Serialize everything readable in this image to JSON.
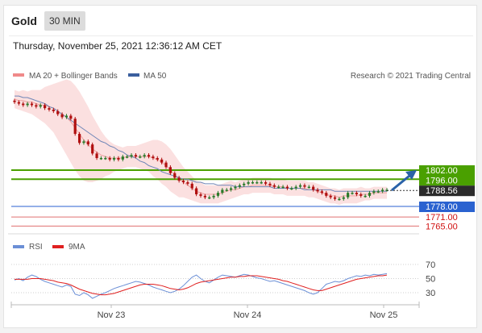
{
  "header": {
    "title": "Gold",
    "timeframe": "30 MIN"
  },
  "date_text": "Thursday, November 25, 2021 12:36:12 AM CET",
  "credit": "Research © 2021 Trading Central",
  "legend_main": [
    {
      "name": "MA 20 + Bollinger Bands",
      "color": "#f08a8a"
    },
    {
      "name": "MA 50",
      "color": "#3a5f9e"
    }
  ],
  "legend_rsi": [
    {
      "name": "RSI",
      "color": "#6b8fd6"
    },
    {
      "name": "9MA",
      "color": "#e02020"
    }
  ],
  "colors": {
    "up": "#2a7a2a",
    "down": "#b01010",
    "resistance": "#4aa000",
    "support_blue": "#2a62d0",
    "support_red": "#e07070",
    "band_fill": "#fbe0e0",
    "ma50": "#6f86b7",
    "ma20": "#f0a0a0",
    "price_box": "#2b2b2b",
    "arrow": "#2a62a8"
  },
  "chart_data": [
    {
      "type": "candlestick",
      "x_ticks": [
        "Nov 23",
        "Nov 24",
        "Nov 25"
      ],
      "price_levels": [
        {
          "value": 1802.0,
          "label": "1802.00",
          "kind": "resistance"
        },
        {
          "value": 1796.0,
          "label": "1796.00",
          "kind": "resistance"
        },
        {
          "value": 1788.56,
          "label": "1788.56",
          "kind": "last"
        },
        {
          "value": 1778.0,
          "label": "1778.00",
          "kind": "support"
        },
        {
          "value": 1771.0,
          "label": "1771.00",
          "kind": "support"
        },
        {
          "value": 1765.0,
          "label": "1765.00",
          "kind": "support"
        }
      ],
      "close": [
        1847,
        1846,
        1845,
        1846,
        1845,
        1844,
        1845,
        1843,
        1842,
        1841,
        1839,
        1837,
        1838,
        1836,
        1826,
        1820,
        1821,
        1819,
        1813,
        1810,
        1810,
        1810,
        1809,
        1810,
        1809,
        1811,
        1811,
        1812,
        1811,
        1811,
        1812,
        1811,
        1810,
        1809,
        1807,
        1804,
        1800,
        1797,
        1795,
        1794,
        1793,
        1790,
        1786,
        1785,
        1784,
        1784,
        1785,
        1787,
        1789,
        1789,
        1790,
        1791,
        1792,
        1793,
        1794,
        1794,
        1794,
        1794,
        1793,
        1792,
        1791,
        1791,
        1791,
        1790,
        1790,
        1791,
        1792,
        1791,
        1791,
        1789,
        1788,
        1787,
        1785,
        1784,
        1783,
        1783,
        1784,
        1787,
        1787,
        1786,
        1785,
        1785,
        1787,
        1788,
        1788,
        1789,
        1789
      ],
      "ma20": [
        1849,
        1848,
        1848,
        1847,
        1847,
        1846,
        1845,
        1845,
        1844,
        1843,
        1841,
        1839,
        1837,
        1834,
        1830,
        1826,
        1822,
        1819,
        1816,
        1814,
        1812,
        1811,
        1810,
        1810,
        1810,
        1810,
        1811,
        1811,
        1811,
        1811,
        1811,
        1811,
        1810,
        1809,
        1807,
        1805,
        1802,
        1799,
        1796,
        1794,
        1792,
        1790,
        1788,
        1787,
        1786,
        1786,
        1786,
        1786,
        1787,
        1788,
        1789,
        1789,
        1790,
        1791,
        1791,
        1792,
        1792,
        1792,
        1792,
        1792,
        1791,
        1791,
        1791,
        1790,
        1790,
        1790,
        1790,
        1790,
        1789,
        1789,
        1788,
        1787,
        1786,
        1785,
        1785,
        1784,
        1785,
        1785,
        1785,
        1785,
        1786,
        1786,
        1786,
        1787,
        1787,
        1787,
        1787
      ],
      "ma50": [
        1851,
        1851,
        1850,
        1850,
        1849,
        1848,
        1847,
        1846,
        1844,
        1843,
        1841,
        1839,
        1837,
        1835,
        1833,
        1831,
        1829,
        1827,
        1825,
        1823,
        1821,
        1820,
        1818,
        1817,
        1815,
        1814,
        1812,
        1811,
        1810,
        1808,
        1807,
        1805,
        1804,
        1803,
        1801,
        1800,
        1799,
        1798,
        1797,
        1796,
        1796,
        1795,
        1794,
        1794,
        1793,
        1793,
        1793,
        1792,
        1792,
        1792,
        1792,
        1791,
        1791,
        1791,
        1791,
        1791,
        1791,
        1791,
        1791,
        1791,
        1790,
        1790,
        1790,
        1790,
        1790,
        1790,
        1790,
        1789,
        1789,
        1789,
        1789,
        1789,
        1789,
        1789,
        1788,
        1788,
        1788,
        1788,
        1788,
        1788,
        1788,
        1788,
        1788,
        1788,
        1788,
        1788,
        1788
      ],
      "band_width": [
        6,
        6,
        7,
        7,
        8,
        9,
        10,
        12,
        14,
        16,
        19,
        22,
        25,
        27,
        28,
        28,
        27,
        25,
        22,
        19,
        16,
        13,
        11,
        9,
        8,
        7,
        7,
        7,
        7,
        8,
        9,
        10,
        12,
        13,
        14,
        14,
        14,
        13,
        12,
        10,
        9,
        8,
        7,
        7,
        6,
        6,
        6,
        6,
        6,
        6,
        6,
        5,
        5,
        5,
        5,
        5,
        5,
        5,
        5,
        5,
        5,
        5,
        5,
        5,
        5,
        5,
        5,
        5,
        5,
        5,
        5,
        5,
        5,
        5,
        5,
        5,
        5,
        5,
        5,
        5,
        5,
        4,
        4,
        4,
        4,
        4,
        4
      ]
    },
    {
      "type": "line",
      "name": "RSI panel",
      "y_ticks": [
        70,
        50,
        30
      ],
      "ylim": [
        20,
        80
      ],
      "series": [
        {
          "name": "RSI",
          "values": [
            48,
            50,
            47,
            52,
            55,
            53,
            49,
            46,
            44,
            42,
            40,
            38,
            41,
            39,
            28,
            26,
            30,
            27,
            22,
            25,
            28,
            30,
            33,
            36,
            38,
            40,
            42,
            44,
            46,
            45,
            43,
            41,
            38,
            36,
            34,
            32,
            30,
            32,
            35,
            40,
            46,
            52,
            55,
            50,
            46,
            44,
            48,
            52,
            55,
            54,
            53,
            52,
            54,
            56,
            55,
            53,
            51,
            50,
            48,
            46,
            47,
            45,
            43,
            41,
            39,
            37,
            35,
            33,
            30,
            28,
            30,
            36,
            42,
            44,
            46,
            45,
            47,
            50,
            52,
            54,
            53,
            55,
            54,
            56,
            55,
            56,
            57
          ]
        },
        {
          "name": "9MA",
          "values": [
            49,
            49,
            49,
            49,
            50,
            50,
            50,
            49,
            48,
            47,
            45,
            44,
            43,
            41,
            38,
            35,
            33,
            31,
            29,
            28,
            27,
            27,
            28,
            29,
            31,
            33,
            35,
            37,
            39,
            41,
            42,
            42,
            42,
            41,
            40,
            38,
            36,
            35,
            34,
            35,
            37,
            40,
            43,
            45,
            46,
            47,
            48,
            49,
            50,
            51,
            52,
            52,
            53,
            53,
            54,
            54,
            54,
            53,
            52,
            51,
            50,
            49,
            47,
            46,
            44,
            42,
            40,
            38,
            36,
            34,
            33,
            33,
            35,
            37,
            39,
            41,
            43,
            45,
            47,
            49,
            50,
            51,
            52,
            53,
            54,
            54,
            55
          ]
        }
      ]
    }
  ]
}
